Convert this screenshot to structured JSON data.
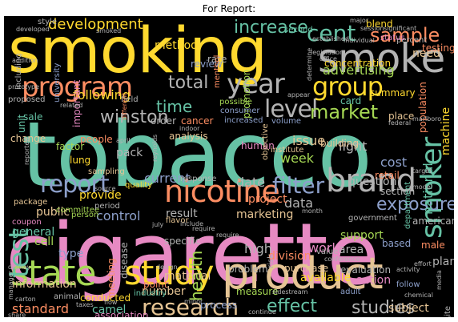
{
  "title": "For Report:",
  "palette": {
    "background": "#000000",
    "teal": "#66c2a5",
    "orange": "#fc8d62",
    "blue": "#8da0cb",
    "pink": "#e78ac3",
    "green": "#a6d854",
    "yellow": "#ffd92f",
    "tan": "#e5c494",
    "gray": "#b3b3b3"
  },
  "words": [
    {
      "text": "tobacco",
      "color": "teal"
    },
    {
      "text": "cigarette",
      "color": "pink"
    },
    {
      "text": "smoking",
      "color": "yellow"
    },
    {
      "text": "product",
      "color": "tan"
    },
    {
      "text": "smoke",
      "color": "gray"
    },
    {
      "text": "brand",
      "color": "gray"
    },
    {
      "text": "study",
      "color": "yellow"
    },
    {
      "text": "nicotine",
      "color": "orange"
    },
    {
      "text": "program",
      "color": "orange"
    },
    {
      "text": "state",
      "color": "green"
    },
    {
      "text": "smoker",
      "color": "teal"
    },
    {
      "text": "year",
      "color": "gray"
    },
    {
      "text": "group",
      "color": "yellow"
    },
    {
      "text": "level",
      "color": "gray"
    },
    {
      "text": "test",
      "color": "teal"
    },
    {
      "text": "report",
      "color": "blue"
    },
    {
      "text": "filter",
      "color": "blue"
    },
    {
      "text": "research",
      "color": "tan"
    },
    {
      "text": "cent",
      "color": "teal"
    },
    {
      "text": "sample",
      "color": "orange"
    },
    {
      "text": "market",
      "color": "green"
    },
    {
      "text": "winston",
      "color": "gray"
    },
    {
      "text": "time",
      "color": "teal"
    },
    {
      "text": "total",
      "color": "gray"
    },
    {
      "text": "exposure",
      "color": "blue"
    },
    {
      "text": "increase",
      "color": "teal"
    },
    {
      "text": "development",
      "color": "yellow"
    },
    {
      "text": "advertising",
      "color": "green"
    },
    {
      "text": "effect",
      "color": "teal"
    },
    {
      "text": "studies",
      "color": "gray"
    },
    {
      "text": "health",
      "color": "green"
    },
    {
      "text": "information",
      "color": "tan"
    },
    {
      "text": "number",
      "color": "tan"
    },
    {
      "text": "standard",
      "color": "orange"
    },
    {
      "text": "control",
      "color": "blue"
    },
    {
      "text": "data",
      "color": "gray"
    },
    {
      "text": "high",
      "color": "gray"
    },
    {
      "text": "work",
      "color": "pink"
    },
    {
      "text": "cost",
      "color": "blue"
    },
    {
      "text": "light",
      "color": "gray"
    },
    {
      "text": "issue",
      "color": "tan"
    },
    {
      "text": "week",
      "color": "green"
    },
    {
      "text": "question",
      "color": "gray"
    },
    {
      "text": "method",
      "color": "yellow"
    },
    {
      "text": "following",
      "color": "yellow"
    },
    {
      "text": "current",
      "color": "blue"
    },
    {
      "text": "date",
      "color": "gray"
    },
    {
      "text": "support",
      "color": "green"
    },
    {
      "text": "national",
      "color": "teal"
    },
    {
      "text": "division",
      "color": "orange"
    },
    {
      "text": "area",
      "color": "gray"
    },
    {
      "text": "camel",
      "color": "teal"
    },
    {
      "text": "material",
      "color": "tan"
    },
    {
      "text": "general",
      "color": "teal"
    },
    {
      "text": "provide",
      "color": "yellow"
    },
    {
      "text": "public",
      "color": "tan"
    },
    {
      "text": "type",
      "color": "blue"
    },
    {
      "text": "cell",
      "color": "green"
    },
    {
      "text": "result",
      "color": "gray"
    },
    {
      "text": "marketing",
      "color": "tan"
    },
    {
      "text": "project",
      "color": "orange"
    },
    {
      "text": "process",
      "color": "blue"
    },
    {
      "text": "measure",
      "color": "green"
    },
    {
      "text": "available",
      "color": "yellow"
    },
    {
      "text": "action",
      "color": "pink"
    },
    {
      "text": "problem",
      "color": "gray"
    },
    {
      "text": "order",
      "color": "gray"
    },
    {
      "text": "cancer",
      "color": "orange"
    },
    {
      "text": "human",
      "color": "pink"
    },
    {
      "text": "need",
      "color": "tan"
    },
    {
      "text": "lung",
      "color": "yellow"
    },
    {
      "text": "pack",
      "color": "gray"
    },
    {
      "text": "sale",
      "color": "teal"
    },
    {
      "text": "based",
      "color": "blue"
    },
    {
      "text": "male",
      "color": "orange"
    },
    {
      "text": "plan",
      "color": "gray"
    },
    {
      "text": "subject",
      "color": "tan"
    },
    {
      "text": "machine",
      "color": "yellow"
    },
    {
      "text": "card",
      "color": "teal"
    },
    {
      "text": "place",
      "color": "tan"
    },
    {
      "text": "summary",
      "color": "yellow"
    },
    {
      "text": "people",
      "color": "orange"
    },
    {
      "text": "factor",
      "color": "green"
    },
    {
      "text": "change",
      "color": "tan"
    },
    {
      "text": "retail",
      "color": "orange"
    },
    {
      "text": "american",
      "color": "gray"
    },
    {
      "text": "section",
      "color": "gray"
    },
    {
      "text": "rate",
      "color": "gray"
    },
    {
      "text": "review",
      "color": "blue"
    },
    {
      "text": "menthol",
      "color": "orange"
    },
    {
      "text": "promotion",
      "color": "green"
    },
    {
      "text": "analysis",
      "color": "tan"
    },
    {
      "text": "package",
      "color": "tan"
    },
    {
      "text": "committee",
      "color": "green"
    },
    {
      "text": "disease",
      "color": "gray"
    },
    {
      "text": "flavor",
      "color": "tan"
    },
    {
      "text": "point",
      "color": "orange"
    },
    {
      "text": "specific",
      "color": "gray"
    },
    {
      "text": "industry",
      "color": "teal"
    },
    {
      "text": "unit",
      "color": "teal"
    },
    {
      "text": "building",
      "color": "tan"
    },
    {
      "text": "possible",
      "color": "green"
    },
    {
      "text": "consumer",
      "color": "blue"
    },
    {
      "text": "volume",
      "color": "blue"
    },
    {
      "text": "increased",
      "color": "blue"
    },
    {
      "text": "institute",
      "color": "tan"
    },
    {
      "text": "objective",
      "color": "tan"
    },
    {
      "text": "risk",
      "color": "gray"
    },
    {
      "text": "adult",
      "color": "blue"
    },
    {
      "text": "purchase",
      "color": "tan"
    },
    {
      "text": "evaluation",
      "color": "gray"
    },
    {
      "text": "government",
      "color": "gray"
    },
    {
      "text": "sampling",
      "color": "tan"
    },
    {
      "text": "quality",
      "color": "yellow"
    },
    {
      "text": "period",
      "color": "gray"
    },
    {
      "text": "response",
      "color": "gray"
    },
    {
      "text": "coupon",
      "color": "pink"
    },
    {
      "text": "person",
      "color": "green"
    },
    {
      "text": "association",
      "color": "pink"
    },
    {
      "text": "conducted",
      "color": "yellow"
    },
    {
      "text": "animal",
      "color": "gray"
    },
    {
      "text": "meeting",
      "color": "orange"
    },
    {
      "text": "field",
      "color": "gray"
    },
    {
      "text": "concentration",
      "color": "yellow"
    },
    {
      "text": "percent",
      "color": "gray"
    },
    {
      "text": "testing",
      "color": "orange"
    },
    {
      "text": "status",
      "color": "pink"
    },
    {
      "text": "second",
      "color": "teal"
    },
    {
      "text": "blend",
      "color": "yellow"
    },
    {
      "text": "population",
      "color": "orange"
    },
    {
      "text": "university",
      "color": "blue"
    },
    {
      "text": "style",
      "color": "gray"
    },
    {
      "text": "including",
      "color": "gray"
    },
    {
      "text": "proposed",
      "color": "gray"
    },
    {
      "text": "value",
      "color": "gray"
    },
    {
      "text": "follow",
      "color": "blue"
    },
    {
      "text": "site",
      "color": "gray"
    },
    {
      "text": "department",
      "color": "teal"
    },
    {
      "text": "require",
      "color": "gray"
    },
    {
      "text": "model",
      "color": "gray"
    },
    {
      "text": "source",
      "color": "gray"
    },
    {
      "text": "office",
      "color": "gray"
    },
    {
      "text": "addition",
      "color": "gray"
    },
    {
      "text": "important",
      "color": "pink"
    },
    {
      "text": "prototype",
      "color": "gray"
    },
    {
      "text": "smoked",
      "color": "gray"
    },
    {
      "text": "developed",
      "color": "gray"
    },
    {
      "text": "related",
      "color": "gray"
    },
    {
      "text": "different",
      "color": "orange"
    },
    {
      "text": "federal",
      "color": "gray"
    },
    {
      "text": "marlboro",
      "color": "gray"
    },
    {
      "text": "display",
      "color": "gray"
    },
    {
      "text": "carton",
      "color": "gray"
    },
    {
      "text": "taxes",
      "color": "gray"
    },
    {
      "text": "conference",
      "color": "gray"
    },
    {
      "text": "chemical",
      "color": "gray"
    },
    {
      "text": "continue",
      "color": "gray"
    },
    {
      "text": "design",
      "color": "gray"
    },
    {
      "text": "minor",
      "color": "gray"
    },
    {
      "text": "media",
      "color": "gray"
    },
    {
      "text": "sidestream",
      "color": "gray"
    },
    {
      "text": "july",
      "color": "gray"
    },
    {
      "text": "include",
      "color": "gray"
    },
    {
      "text": "target",
      "color": "gray"
    },
    {
      "text": "indoor",
      "color": "gray"
    },
    {
      "text": "reynolds",
      "color": "gray"
    },
    {
      "text": "legislation",
      "color": "gray"
    },
    {
      "text": "determine",
      "color": "gray"
    },
    {
      "text": "activity",
      "color": "gray"
    },
    {
      "text": "effort",
      "color": "gray"
    },
    {
      "text": "session",
      "color": "gray"
    },
    {
      "text": "significant",
      "color": "gray"
    },
    {
      "text": "individual",
      "color": "gray"
    },
    {
      "text": "established",
      "color": "gray"
    },
    {
      "text": "appear",
      "color": "gray"
    },
    {
      "text": "major",
      "color": "gray"
    },
    {
      "text": "month",
      "color": "gray"
    },
    {
      "text": "april",
      "color": "gray"
    },
    {
      "text": "share",
      "color": "gray"
    },
    {
      "text": "flow",
      "color": "gray"
    },
    {
      "text": "mean",
      "color": "gray"
    },
    {
      "text": "require",
      "color": "gray"
    },
    {
      "text": "reported",
      "color": "gray"
    },
    {
      "text": "manager",
      "color": "gray"
    },
    {
      "text": "free",
      "color": "gray"
    }
  ]
}
